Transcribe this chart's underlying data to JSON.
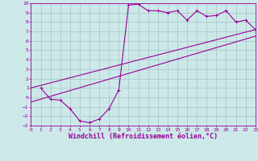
{
  "xlabel": "Windchill (Refroidissement éolien,°C)",
  "bg_color": "#cce8e8",
  "grid_color": "#aacccc",
  "line_color": "#990099",
  "xlim": [
    0,
    23
  ],
  "ylim": [
    -3,
    10
  ],
  "xticks": [
    0,
    1,
    2,
    3,
    4,
    5,
    6,
    7,
    8,
    9,
    10,
    11,
    12,
    13,
    14,
    15,
    16,
    17,
    18,
    19,
    20,
    21,
    22,
    23
  ],
  "yticks": [
    -3,
    -2,
    -1,
    0,
    1,
    2,
    3,
    4,
    5,
    6,
    7,
    8,
    9,
    10
  ],
  "curve1_x": [
    1,
    2,
    3,
    4,
    5,
    6,
    7,
    8,
    9,
    10,
    11,
    12,
    13,
    14,
    15,
    16,
    17,
    18,
    19,
    20,
    21,
    22,
    23
  ],
  "curve1_y": [
    1.0,
    -0.2,
    -0.3,
    -1.2,
    -2.5,
    -2.7,
    -2.3,
    -1.2,
    0.8,
    9.8,
    9.9,
    9.2,
    9.2,
    9.0,
    9.2,
    8.2,
    9.2,
    8.6,
    8.7,
    9.2,
    8.0,
    8.2,
    7.2
  ],
  "curve2_x": [
    0,
    23
  ],
  "curve2_y": [
    1.0,
    7.2
  ],
  "curve3_x": [
    0,
    23
  ],
  "curve3_y": [
    -0.5,
    6.5
  ],
  "marker_size": 2.5,
  "tick_fontsize": 4.5,
  "label_fontsize": 6.0
}
